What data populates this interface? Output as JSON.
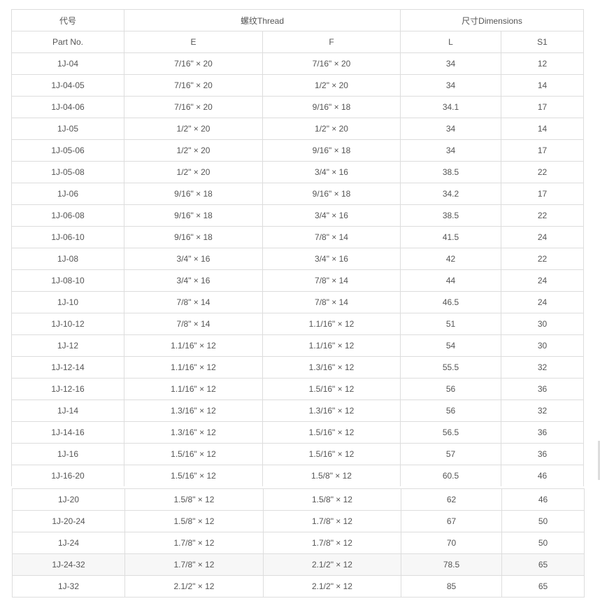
{
  "header": {
    "code_cn": "代号",
    "part_no": "Part No.",
    "thread": "螺纹Thread",
    "dimensions": "尺寸Dimensions",
    "E": "E",
    "F": "F",
    "L": "L",
    "S1": "S1"
  },
  "rows": [
    [
      "1J-04",
      "7/16\" × 20",
      "7/16\" × 20",
      "34",
      "12"
    ],
    [
      "1J-04-05",
      "7/16\" × 20",
      "1/2\" × 20",
      "34",
      "14"
    ],
    [
      "1J-04-06",
      "7/16\" × 20",
      "9/16\" × 18",
      "34.1",
      "17"
    ],
    [
      "1J-05",
      "1/2\" × 20",
      "1/2\" × 20",
      "34",
      "14"
    ],
    [
      "1J-05-06",
      "1/2\" × 20",
      "9/16\" × 18",
      "34",
      "17"
    ],
    [
      "1J-05-08",
      "1/2\" × 20",
      "3/4\" × 16",
      "38.5",
      "22"
    ],
    [
      "1J-06",
      "9/16\" × 18",
      "9/16\" × 18",
      "34.2",
      "17"
    ],
    [
      "1J-06-08",
      "9/16\" × 18",
      "3/4\" × 16",
      "38.5",
      "22"
    ],
    [
      "1J-06-10",
      "9/16\" × 18",
      "7/8\" × 14",
      "41.5",
      "24"
    ],
    [
      "1J-08",
      "3/4\" × 16",
      "3/4\" × 16",
      "42",
      "22"
    ],
    [
      "1J-08-10",
      "3/4\" × 16",
      "7/8\" × 14",
      "44",
      "24"
    ],
    [
      "1J-10",
      "7/8\" × 14",
      "7/8\" × 14",
      "46.5",
      "24"
    ],
    [
      "1J-10-12",
      "7/8\" × 14",
      "1.1/16\" × 12",
      "51",
      "30"
    ],
    [
      "1J-12",
      "1.1/16\" × 12",
      "1.1/16\" × 12",
      "54",
      "30"
    ],
    [
      "1J-12-14",
      "1.1/16\" × 12",
      "1.3/16\" × 12",
      "55.5",
      "32"
    ],
    [
      "1J-12-16",
      "1.1/16\" × 12",
      "1.5/16\" × 12",
      "56",
      "36"
    ],
    [
      "1J-14",
      "1.3/16\" × 12",
      "1.3/16\" × 12",
      "56",
      "32"
    ],
    [
      "1J-14-16",
      "1.3/16\" × 12",
      "1.5/16\" × 12",
      "56.5",
      "36"
    ],
    [
      "1J-16",
      "1.5/16\" × 12",
      "1.5/16\" × 12",
      "57",
      "36"
    ],
    [
      "1J-16-20",
      "1.5/16\" × 12",
      "1.5/8\" × 12",
      "60.5",
      "46"
    ],
    [
      "1J-20",
      "1.5/8\" × 12",
      "1.5/8\" × 12",
      "62",
      "46"
    ],
    [
      "1J-20-24",
      "1.5/8\" × 12",
      "1.7/8\" × 12",
      "67",
      "50"
    ],
    [
      "1J-24",
      "1.7/8\" × 12",
      "1.7/8\" × 12",
      "70",
      "50"
    ],
    [
      "1J-24-32",
      "1.7/8\" × 12",
      "2.1/2\" × 12",
      "78.5",
      "65"
    ],
    [
      "1J-32",
      "2.1/2\" × 12",
      "2.1/2\" × 12",
      "85",
      "65"
    ]
  ],
  "highlighted_row": "1J-24-32"
}
